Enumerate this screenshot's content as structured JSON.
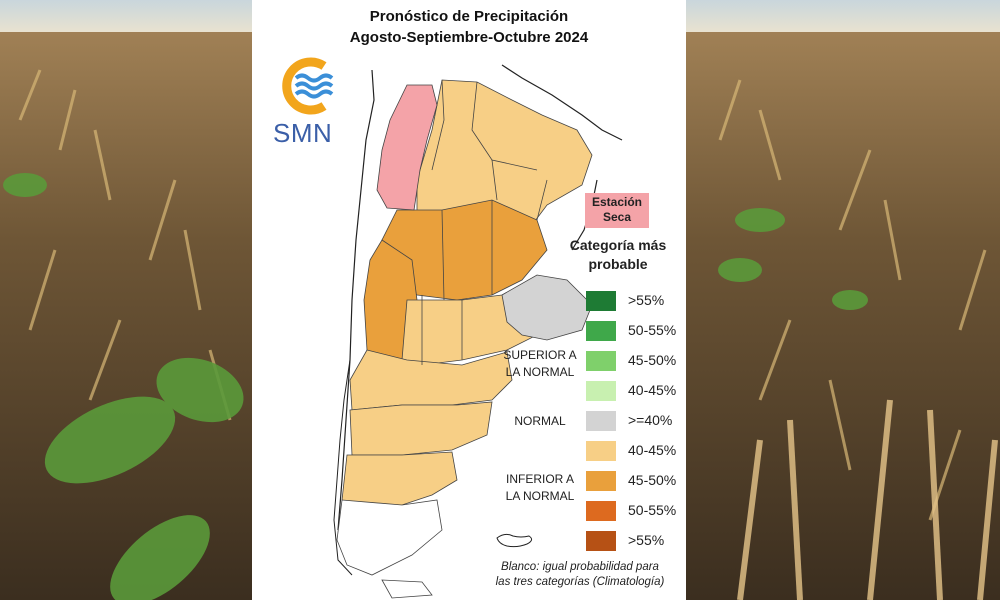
{
  "title_line1": "Pronóstico de Precipitación",
  "title_line2": "Agosto-Septiembre-Octubre 2024",
  "logo_text": "SMN",
  "dry_season_line1": "Estación",
  "dry_season_line2": "Seca",
  "legend": {
    "title_line1": "Categoría más",
    "title_line2": "probable",
    "groups": {
      "superior_line1": "SUPERIOR A",
      "superior_line2": "LA NORMAL",
      "normal": "NORMAL",
      "inferior_line1": "INFERIOR A",
      "inferior_line2": "LA NORMAL"
    },
    "items": [
      {
        "label": ">55%",
        "color": "#1e7b34"
      },
      {
        "label": "50-55%",
        "color": "#3fa84a"
      },
      {
        "label": "45-50%",
        "color": "#7fd06b"
      },
      {
        "label": "40-45%",
        "color": "#c8f0b0"
      },
      {
        "label": ">=40%",
        "color": "#d3d3d3"
      },
      {
        "label": "40-45%",
        "color": "#f7cf86"
      },
      {
        "label": "45-50%",
        "color": "#e9a03c"
      },
      {
        "label": "50-55%",
        "color": "#dd6a1f"
      },
      {
        "label": ">55%",
        "color": "#b65115"
      }
    ]
  },
  "footnote_line1": "Blanco: igual probabilidad para",
  "footnote_line2": "las tres categorías (Climatología)",
  "colors": {
    "dry": "#f4a3a8",
    "light_orange": "#f7cf86",
    "mid_orange": "#e9a03c",
    "normal_gray": "#d3d3d3",
    "logo_orange": "#f2a51c",
    "logo_blue": "#3b8fd8"
  }
}
